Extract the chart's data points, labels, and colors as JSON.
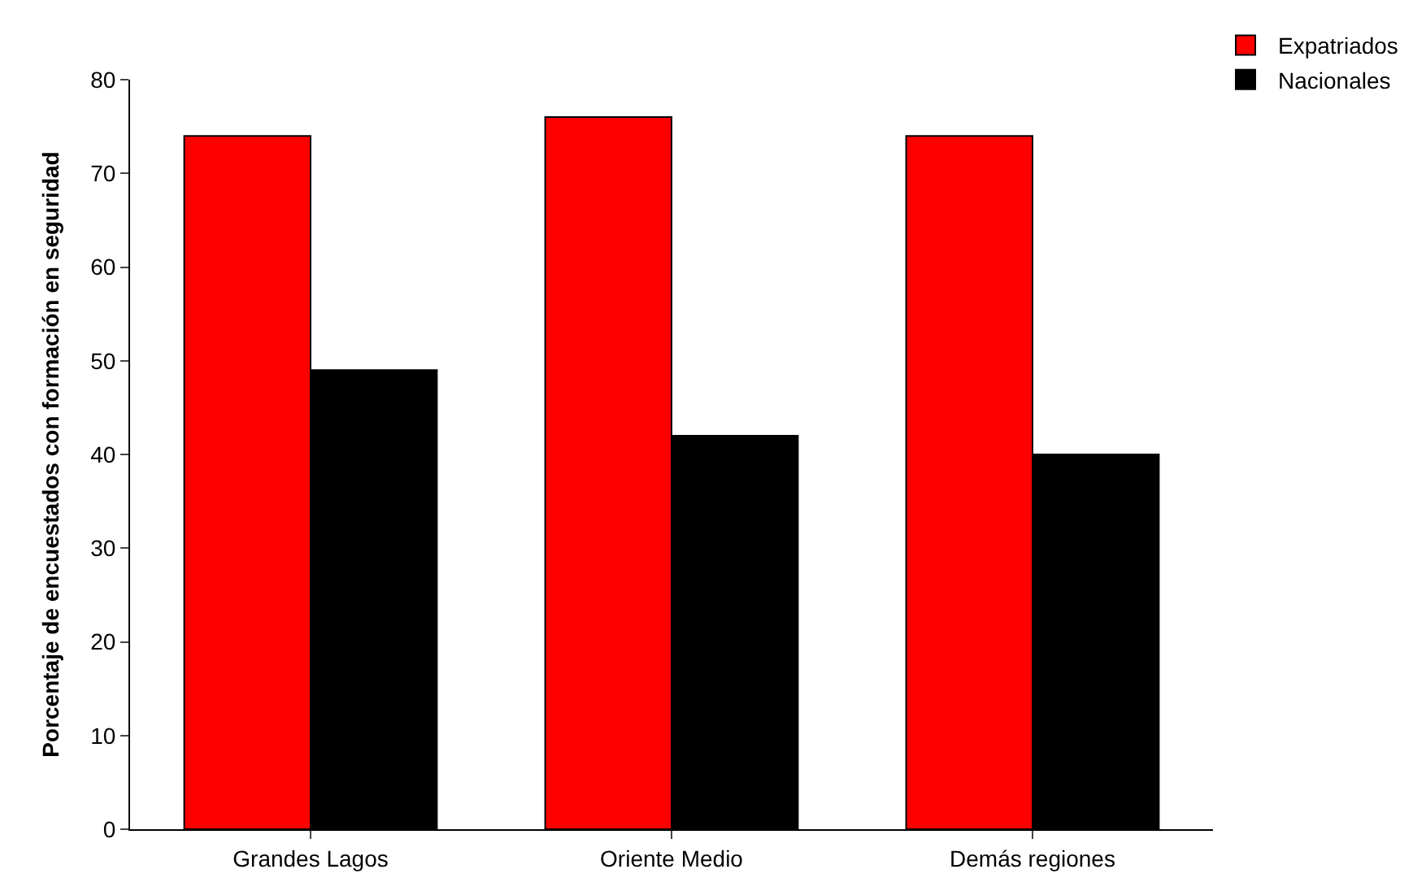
{
  "chart_data": {
    "type": "bar",
    "ylabel": "Porcentaje de encuestados con formación en seguridad",
    "categories": [
      "Grandes Lagos",
      "Oriente Medio",
      "Demás regiones"
    ],
    "series": [
      {
        "name": "Expatriados",
        "color": "#ff0000",
        "values": [
          74,
          76,
          74
        ]
      },
      {
        "name": "Nacionales",
        "color": "#000000",
        "values": [
          49,
          42,
          40
        ]
      }
    ],
    "ylim": [
      0,
      80
    ],
    "yticks": [
      0,
      10,
      20,
      30,
      40,
      50,
      60,
      70,
      80
    ],
    "grid": false,
    "legend": "top right"
  }
}
